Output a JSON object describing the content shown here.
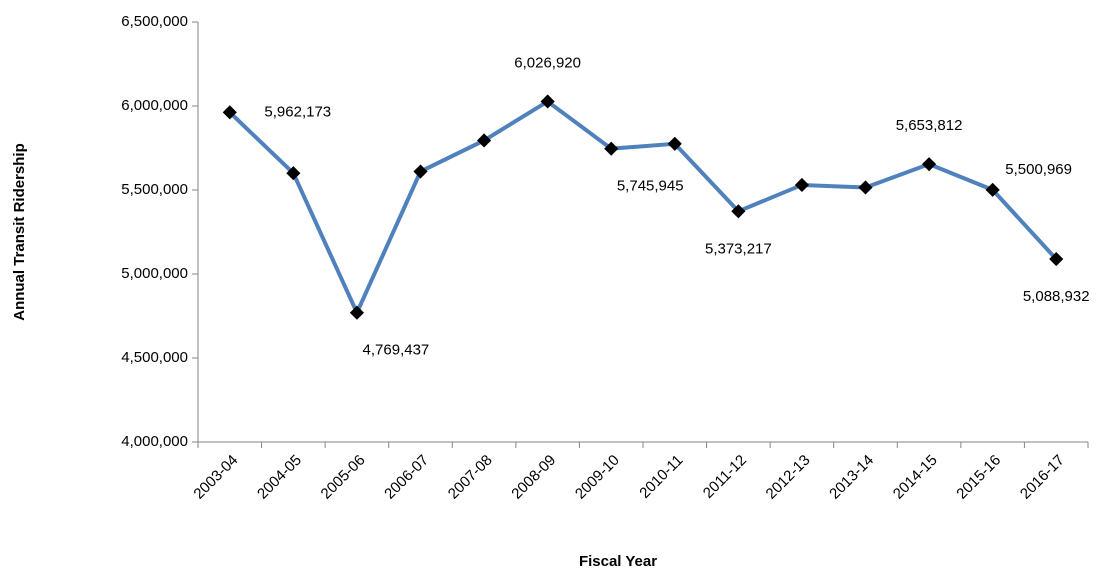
{
  "chart_data": {
    "type": "line",
    "x_label": "Fiscal Year",
    "y_label": "Annual  Transit Ridership",
    "categories": [
      "2003-04",
      "2004-05",
      "2005-06",
      "2006-07",
      "2007-08",
      "2008-09",
      "2009-10",
      "2010-11",
      "2011-12",
      "2012-13",
      "2013-14",
      "2014-15",
      "2015-16",
      "2016-17"
    ],
    "series": [
      {
        "name": "Annual Transit Ridership",
        "color": "#4f81bd",
        "values": [
          5962173,
          5600000,
          4769437,
          5610000,
          5795000,
          6026920,
          5745945,
          5775000,
          5373217,
          5530000,
          5515000,
          5653812,
          5500969,
          5088932
        ],
        "value_labels": [
          "5,962,173",
          null,
          "4,769,437",
          null,
          null,
          "6,026,920",
          "5,745,945",
          null,
          "5,373,217",
          null,
          null,
          "5,653,812",
          "5,500,969",
          "5,088,932"
        ]
      }
    ],
    "ylim": [
      4000000,
      6500000
    ],
    "yticks": [
      {
        "value": 4000000,
        "label": "4,000,000"
      },
      {
        "value": 4500000,
        "label": "4,500,000"
      },
      {
        "value": 5000000,
        "label": "5,000,000"
      },
      {
        "value": 5500000,
        "label": "5,500,000"
      },
      {
        "value": 6000000,
        "label": "6,000,000"
      },
      {
        "value": 6500000,
        "label": "6,500,000"
      }
    ],
    "grid": false
  }
}
